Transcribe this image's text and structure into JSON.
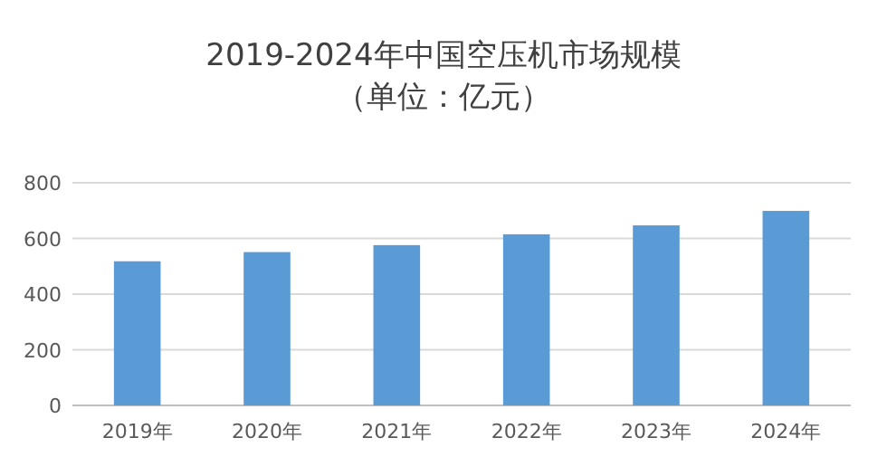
{
  "chart_data": {
    "type": "bar",
    "title": "2019-2024年中国空压机市场规模",
    "subtitle": "（单位：亿元）",
    "categories": [
      "2019年",
      "2020年",
      "2021年",
      "2022年",
      "2023年",
      "2024年"
    ],
    "series": [
      {
        "color": "#5b9bd5",
        "values": [
          518,
          551,
          576,
          615,
          647,
          699
        ]
      }
    ],
    "ylim": [
      0,
      800
    ],
    "yticks": [
      0,
      200,
      400,
      600,
      800
    ],
    "grid": "y"
  }
}
